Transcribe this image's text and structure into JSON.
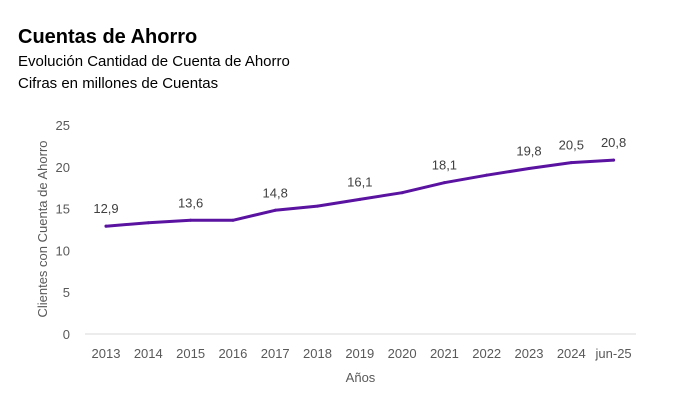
{
  "title": "Cuentas de Ahorro",
  "subtitle1": "Evolución Cantidad de Cuenta de Ahorro",
  "subtitle2": "Cifras en millones de Cuentas",
  "chart_data": {
    "type": "line",
    "categories": [
      "2013",
      "2014",
      "2015",
      "2016",
      "2017",
      "2018",
      "2019",
      "2020",
      "2021",
      "2022",
      "2023",
      "2024",
      "jun-25"
    ],
    "series": [
      {
        "values": [
          12.9,
          13.3,
          13.6,
          13.6,
          14.8,
          15.3,
          16.1,
          16.9,
          18.1,
          19.0,
          19.8,
          20.5,
          20.8
        ],
        "color": "#5a12a0"
      }
    ],
    "data_labels": [
      {
        "category": "2013",
        "text": "12,9"
      },
      {
        "category": "2015",
        "text": "13,6"
      },
      {
        "category": "2017",
        "text": "14,8"
      },
      {
        "category": "2019",
        "text": "16,1"
      },
      {
        "category": "2021",
        "text": "18,1"
      },
      {
        "category": "2023",
        "text": "19,8"
      },
      {
        "category": "2024",
        "text": "20,5"
      },
      {
        "category": "jun-25",
        "text": "20,8"
      }
    ],
    "xlabel": "Años",
    "ylabel": "Clientes con Cuenta de Ahorro",
    "ylim": [
      0,
      25
    ],
    "yticks": [
      "0",
      "5",
      "10",
      "15",
      "20",
      "25"
    ],
    "grid": false
  }
}
